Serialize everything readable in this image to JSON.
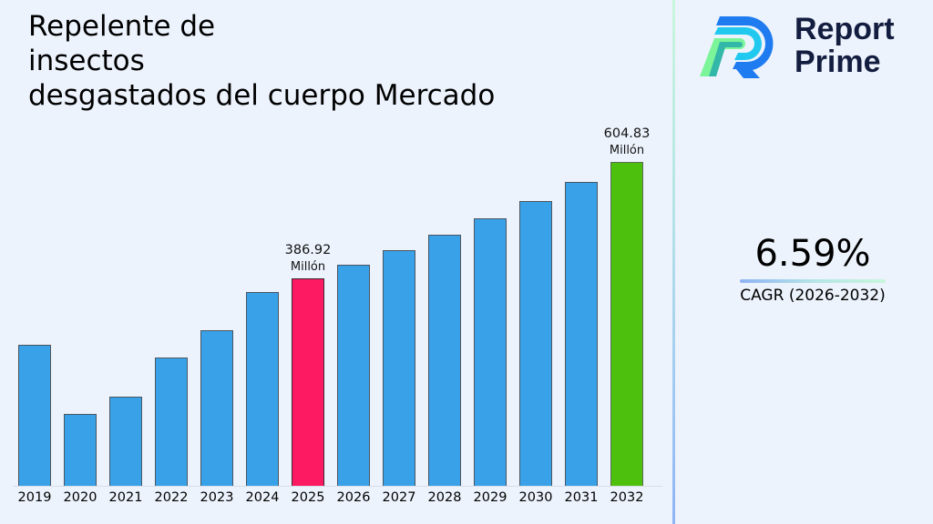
{
  "title": {
    "line1": "Repelente de",
    "line2": "insectos",
    "line3": "desgastados del cuerpo Mercado"
  },
  "brand": {
    "name_line1": "Report",
    "name_line2": "Prime"
  },
  "cagr": {
    "value": "6.59%",
    "label": "CAGR (2026-2032)"
  },
  "colors": {
    "bar_default": "#38a1e8",
    "bar_highlight_base_year": "#fd1a63",
    "bar_highlight_final_year": "#4cc00d",
    "brand_text": "#131d3f"
  },
  "annotations": {
    "y2025": {
      "value": "386.92",
      "unit": "Millón"
    },
    "y2032": {
      "value": "604.83",
      "unit": "Millón"
    }
  },
  "chart_data": {
    "type": "bar",
    "title": "Repelente de insectos desgastados del cuerpo Mercado",
    "xlabel": "",
    "ylabel": "",
    "unit": "Millón",
    "categories": [
      "2019",
      "2020",
      "2021",
      "2022",
      "2023",
      "2024",
      "2025",
      "2026",
      "2027",
      "2028",
      "2029",
      "2030",
      "2031",
      "2032"
    ],
    "values": [
      263,
      135,
      166,
      240,
      290,
      362,
      386.92,
      412.4,
      439.6,
      468.6,
      499.5,
      532.4,
      567.5,
      604.83
    ],
    "highlighted": {
      "2025": "386.92 Millón",
      "2032": "604.83 Millón"
    },
    "cagr": "6.59%",
    "cagr_period": "2026-2032",
    "ylim": [
      0,
      620
    ],
    "grid": false,
    "legend": "none",
    "y_axis_visible": false
  }
}
